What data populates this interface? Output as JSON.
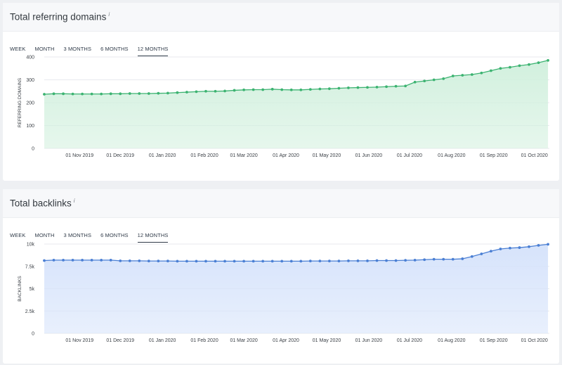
{
  "charts": [
    {
      "title": "Total referring domains",
      "info_icon": "i",
      "tabs": [
        "WEEK",
        "MONTH",
        "3 MONTHS",
        "6 MONTHS",
        "12 MONTHS"
      ],
      "active_tab": "12 MONTHS"
    },
    {
      "title": "Total backlinks",
      "info_icon": "i",
      "tabs": [
        "WEEK",
        "MONTH",
        "3 MONTHS",
        "6 MONTHS",
        "12 MONTHS"
      ],
      "active_tab": "12 MONTHS"
    }
  ],
  "chart_data": [
    {
      "type": "area",
      "title": "Total referring domains",
      "ylabel": "REFERRING DOMAINS",
      "xlabel": "",
      "x_tick_labels": [
        "01 Nov 2019",
        "01 Dec 2019",
        "01 Jan 2020",
        "01 Feb 2020",
        "01 Mar 2020",
        "01 Apr 2020",
        "01 May 2020",
        "01 Jun 2020",
        "01 Jul 2020",
        "01 Aug 2020",
        "01 Sep 2020",
        "01 Oct 2020"
      ],
      "y_tick_labels": [
        "400",
        "300",
        "200",
        "100",
        "0"
      ],
      "ylim": [
        0,
        400
      ],
      "x_range": [
        "2019-10-06",
        "2020-10-12"
      ],
      "color": "#3cb371",
      "fill": "#d2f0de",
      "grid": true,
      "series": [
        {
          "x": [
            "2019-10-06",
            "2019-10-13",
            "2019-10-20",
            "2019-10-27",
            "2019-11-03",
            "2019-11-10",
            "2019-11-17",
            "2019-11-24",
            "2019-12-01",
            "2019-12-08",
            "2019-12-15",
            "2019-12-22",
            "2019-12-29",
            "2020-01-05",
            "2020-01-12",
            "2020-01-19",
            "2020-01-26",
            "2020-02-02",
            "2020-02-09",
            "2020-02-16",
            "2020-02-23",
            "2020-03-01",
            "2020-03-08",
            "2020-03-15",
            "2020-03-22",
            "2020-03-29",
            "2020-04-05",
            "2020-04-12",
            "2020-04-19",
            "2020-04-26",
            "2020-05-03",
            "2020-05-10",
            "2020-05-17",
            "2020-05-24",
            "2020-05-31",
            "2020-06-07",
            "2020-06-14",
            "2020-06-21",
            "2020-06-28",
            "2020-07-05",
            "2020-07-12",
            "2020-07-19",
            "2020-07-26",
            "2020-08-02",
            "2020-08-09",
            "2020-08-16",
            "2020-08-23",
            "2020-08-30",
            "2020-09-06",
            "2020-09-13",
            "2020-09-20",
            "2020-09-27",
            "2020-10-04",
            "2020-10-11"
          ],
          "values": [
            237,
            239,
            239,
            238,
            238,
            238,
            238,
            239,
            239,
            240,
            240,
            240,
            241,
            242,
            244,
            246,
            248,
            250,
            250,
            251,
            254,
            256,
            257,
            257,
            259,
            257,
            256,
            256,
            258,
            260,
            261,
            263,
            265,
            266,
            267,
            268,
            270,
            272,
            273,
            290,
            295,
            300,
            305,
            317,
            320,
            323,
            330,
            340,
            350,
            355,
            362,
            367,
            375,
            385
          ]
        }
      ]
    },
    {
      "type": "area",
      "title": "Total backlinks",
      "ylabel": "BACKLINKS",
      "xlabel": "",
      "x_tick_labels": [
        "01 Nov 2019",
        "01 Dec 2019",
        "01 Jan 2020",
        "01 Feb 2020",
        "01 Mar 2020",
        "01 Apr 2020",
        "01 May 2020",
        "01 Jun 2020",
        "01 Jul 2020",
        "01 Aug 2020",
        "01 Sep 2020",
        "01 Oct 2020"
      ],
      "y_tick_labels": [
        "10k",
        "7.5k",
        "5k",
        "2.5k",
        "0"
      ],
      "ylim": [
        0,
        10000
      ],
      "x_range": [
        "2019-10-06",
        "2020-10-12"
      ],
      "color": "#4a7fd4",
      "fill": "#d6e3fb",
      "grid": true,
      "series": [
        {
          "x": [
            "2019-10-06",
            "2019-10-13",
            "2019-10-20",
            "2019-10-27",
            "2019-11-03",
            "2019-11-10",
            "2019-11-17",
            "2019-11-24",
            "2019-12-01",
            "2019-12-08",
            "2019-12-15",
            "2019-12-22",
            "2019-12-29",
            "2020-01-05",
            "2020-01-12",
            "2020-01-19",
            "2020-01-26",
            "2020-02-02",
            "2020-02-09",
            "2020-02-16",
            "2020-02-23",
            "2020-03-01",
            "2020-03-08",
            "2020-03-15",
            "2020-03-22",
            "2020-03-29",
            "2020-04-05",
            "2020-04-12",
            "2020-04-19",
            "2020-04-26",
            "2020-05-03",
            "2020-05-10",
            "2020-05-17",
            "2020-05-24",
            "2020-05-31",
            "2020-06-07",
            "2020-06-14",
            "2020-06-21",
            "2020-06-28",
            "2020-07-05",
            "2020-07-12",
            "2020-07-19",
            "2020-07-26",
            "2020-08-02",
            "2020-08-09",
            "2020-08-16",
            "2020-08-23",
            "2020-08-30",
            "2020-09-06",
            "2020-09-13",
            "2020-09-20",
            "2020-09-27",
            "2020-10-04",
            "2020-10-11"
          ],
          "values": [
            8150,
            8200,
            8200,
            8200,
            8200,
            8200,
            8200,
            8200,
            8120,
            8120,
            8120,
            8100,
            8100,
            8100,
            8080,
            8080,
            8080,
            8080,
            8080,
            8080,
            8080,
            8080,
            8080,
            8080,
            8080,
            8080,
            8080,
            8080,
            8100,
            8100,
            8100,
            8100,
            8120,
            8120,
            8120,
            8150,
            8150,
            8150,
            8180,
            8200,
            8250,
            8300,
            8300,
            8300,
            8350,
            8600,
            8900,
            9200,
            9450,
            9550,
            9600,
            9700,
            9850,
            9970
          ]
        }
      ]
    }
  ]
}
